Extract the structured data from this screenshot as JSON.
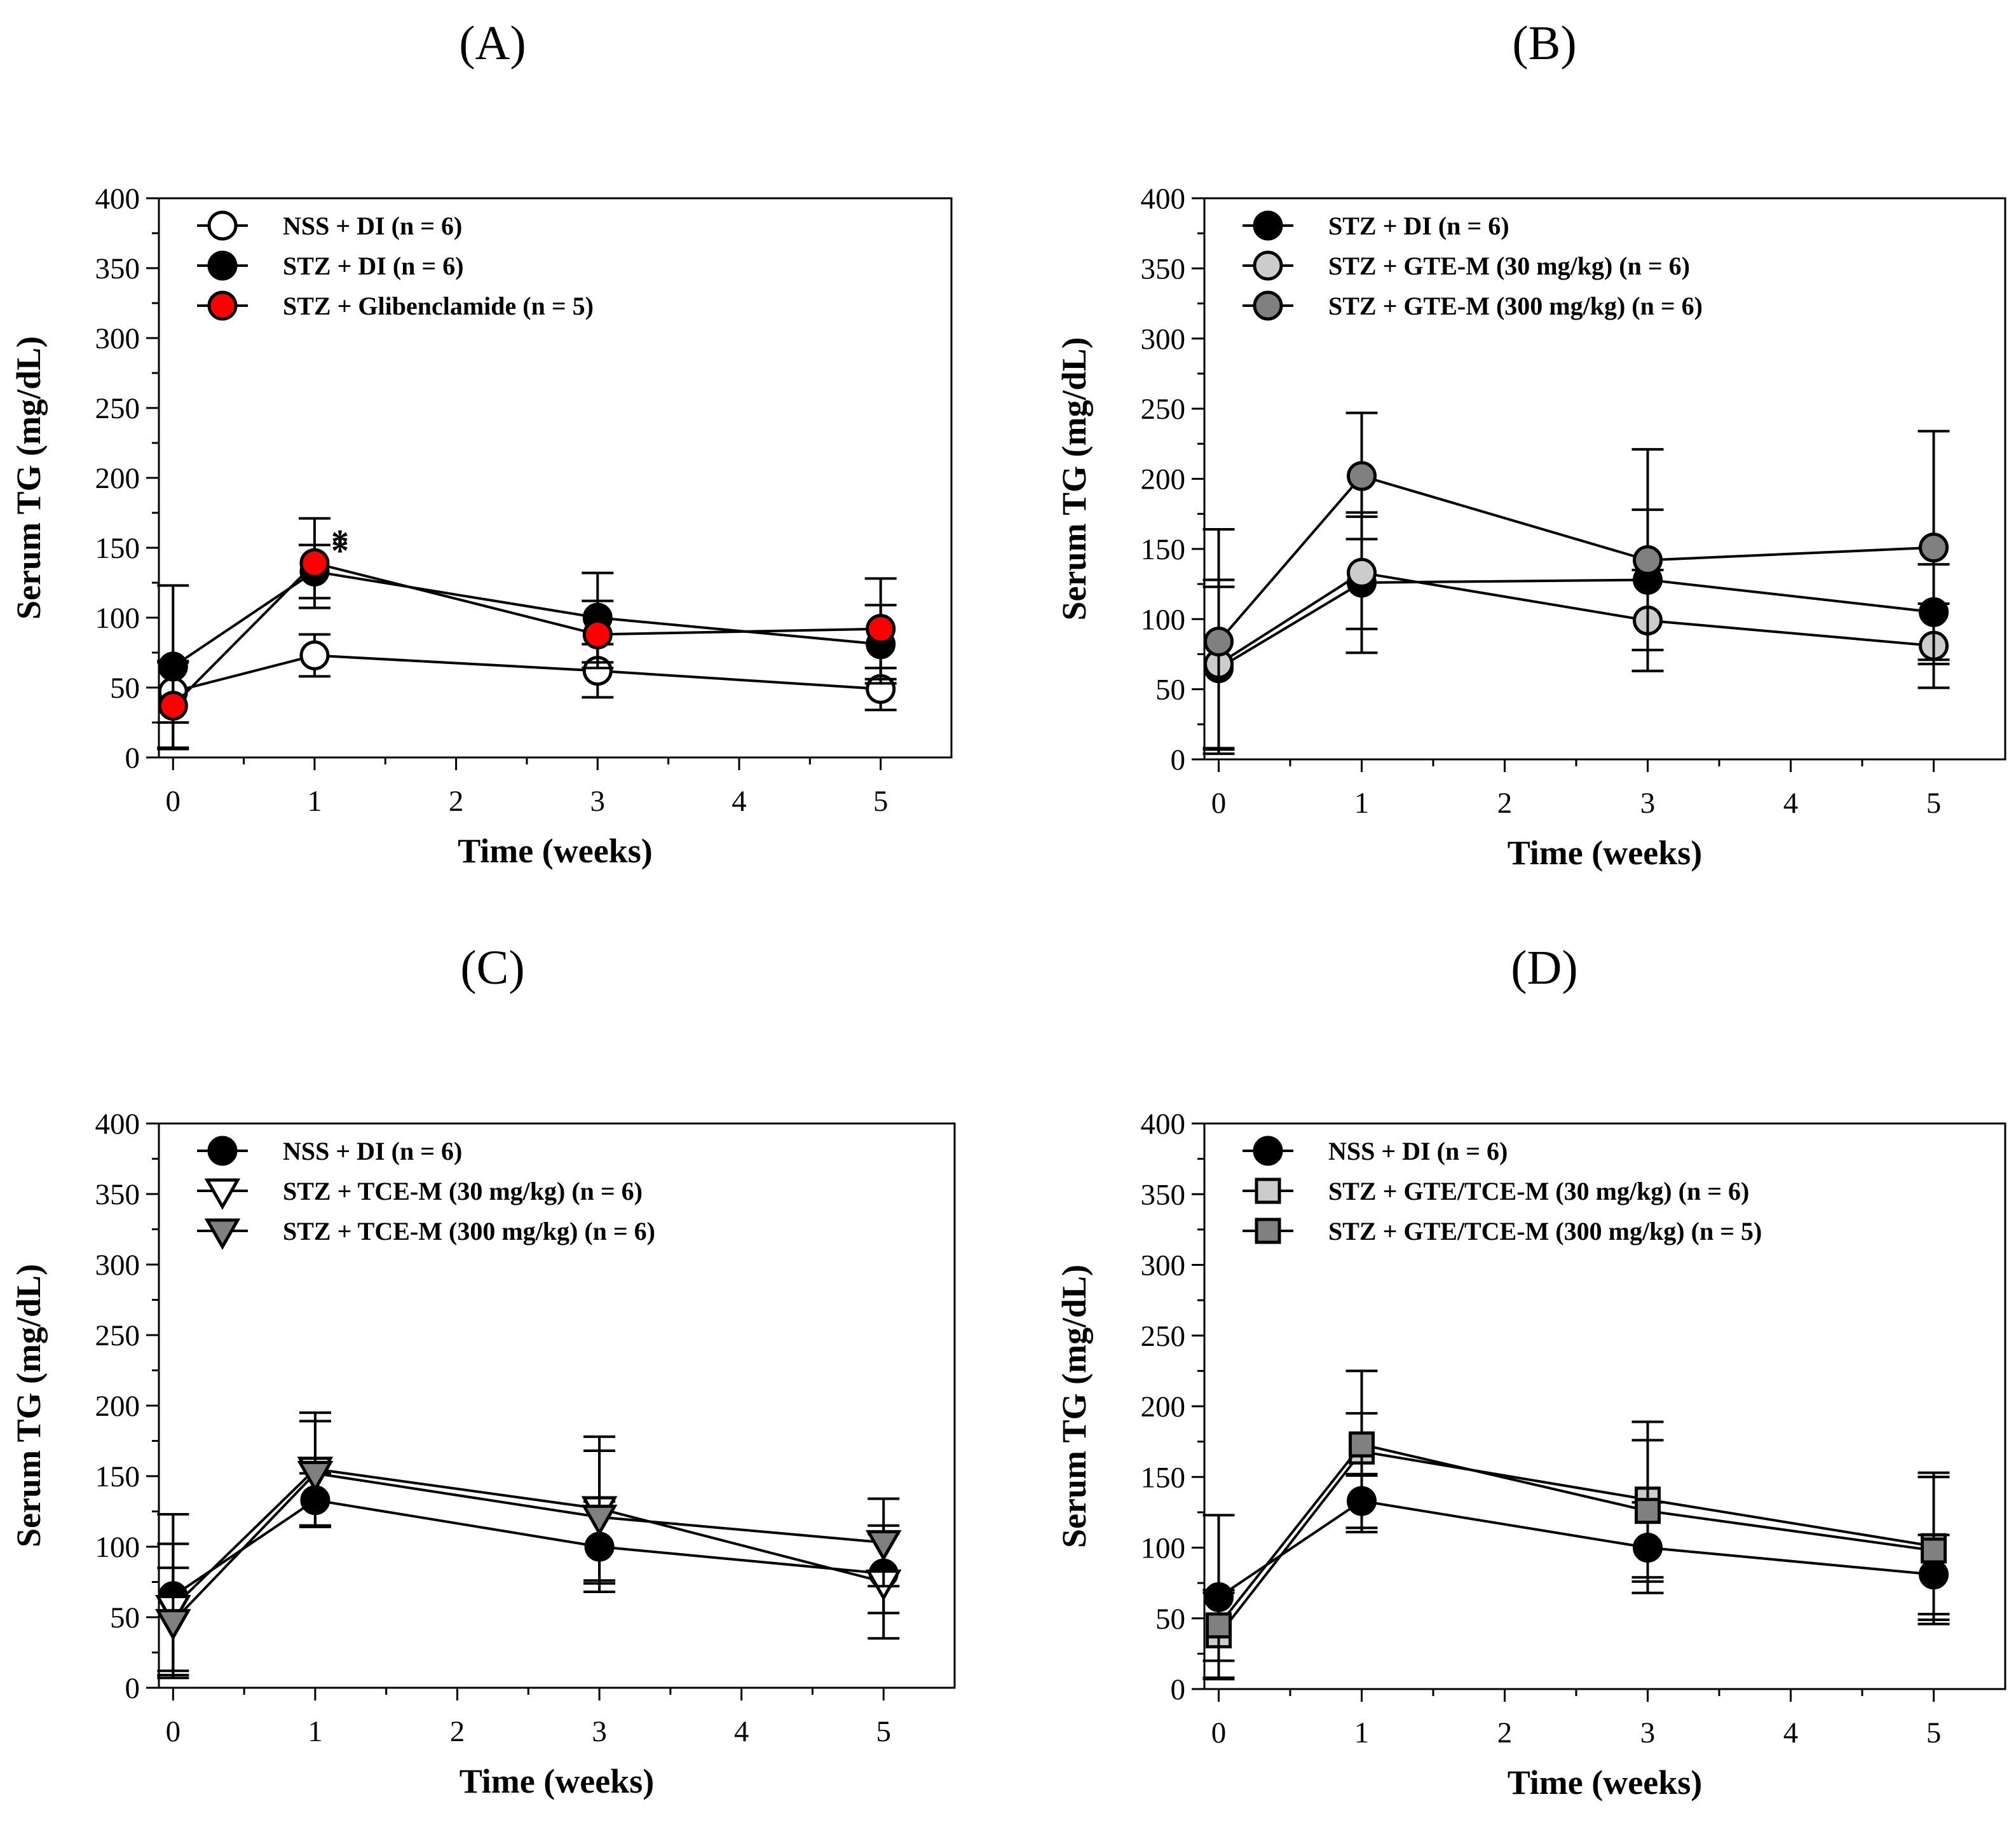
{
  "figure": {
    "charts": [
      {
        "id": "A",
        "panel_label": "(A)",
        "series_order": [
          "nss_di",
          "stz_di",
          "stz_glib"
        ],
        "asterisks": [
          {
            "series": "stz_glib",
            "x": 1,
            "text": "*"
          },
          {
            "series": "stz_di",
            "x": 1,
            "text": "*"
          }
        ]
      },
      {
        "id": "B",
        "panel_label": "(B)",
        "series_order": [
          "stz_di",
          "gte_30",
          "gte_300"
        ],
        "asterisks": []
      },
      {
        "id": "C",
        "panel_label": "(C)",
        "series_order": [
          "nss_di",
          "tce_30",
          "tce_300"
        ],
        "asterisks": []
      },
      {
        "id": "D",
        "panel_label": "(D)",
        "series_order": [
          "nss_di",
          "gtetce_30",
          "gtetce_300"
        ],
        "asterisks": []
      }
    ]
  },
  "chart_data": [
    {
      "type": "line",
      "title": "(A)",
      "xlabel": "Time (weeks)",
      "ylabel": "Serum TG (mg/dL)",
      "xlim": [
        -0.1,
        5.5
      ],
      "ylim": [
        0,
        400
      ],
      "xticks": [
        0,
        1,
        2,
        3,
        4,
        5
      ],
      "yticks": [
        0,
        50,
        100,
        150,
        200,
        250,
        300,
        350,
        400
      ],
      "grid": false,
      "legend_position": "top-left",
      "x": [
        0,
        1,
        3,
        5
      ],
      "series": [
        {
          "key": "nss_di",
          "name": "NSS + DI (n = 6)",
          "marker": "circle",
          "fill": "#ffffff",
          "values": [
            47,
            73,
            62,
            49
          ],
          "errors": [
            22,
            15,
            19,
            15
          ]
        },
        {
          "key": "stz_di",
          "name": "STZ + DI (n = 6)",
          "marker": "circle",
          "fill": "#000000",
          "values": [
            65,
            133,
            100,
            81
          ],
          "errors": [
            58,
            19,
            32,
            28
          ]
        },
        {
          "key": "stz_glib",
          "name": "STZ + Glibenclamide (n = 5)",
          "marker": "circle",
          "fill": "#ff0000",
          "values": [
            37,
            139,
            88,
            92
          ],
          "errors": [
            31,
            32,
            24,
            36
          ]
        }
      ]
    },
    {
      "type": "line",
      "title": "(B)",
      "xlabel": "Time (weeks)",
      "ylabel": "Serum TG (mg/dL)",
      "xlim": [
        -0.1,
        5.5
      ],
      "ylim": [
        0,
        400
      ],
      "xticks": [
        0,
        1,
        2,
        3,
        4,
        5
      ],
      "yticks": [
        0,
        50,
        100,
        150,
        200,
        250,
        300,
        350,
        400
      ],
      "grid": false,
      "legend_position": "top-left",
      "x": [
        0,
        1,
        3,
        5
      ],
      "series": [
        {
          "key": "stz_di",
          "name": "STZ + DI (n = 6)",
          "marker": "circle",
          "fill": "#000000",
          "values": [
            65,
            126,
            128,
            105
          ],
          "errors": [
            58,
            50,
            50,
            34
          ]
        },
        {
          "key": "gte_30",
          "name": "STZ + GTE-M (30 mg/kg) (n = 6)",
          "marker": "circle",
          "fill": "#cccccc",
          "values": [
            68,
            133,
            99,
            81
          ],
          "errors": [
            60,
            40,
            36,
            30
          ]
        },
        {
          "key": "gte_300",
          "name": "STZ + GTE-M (300 mg/kg) (n = 6)",
          "marker": "circle",
          "fill": "#808080",
          "values": [
            84,
            202,
            142,
            151
          ],
          "errors": [
            80,
            45,
            79,
            83
          ]
        }
      ]
    },
    {
      "type": "line",
      "title": "(C)",
      "xlabel": "Time (weeks)",
      "ylabel": "Serum TG (mg/dL)",
      "xlim": [
        -0.1,
        5.5
      ],
      "ylim": [
        0,
        400
      ],
      "xticks": [
        0,
        1,
        2,
        3,
        4,
        5
      ],
      "yticks": [
        0,
        50,
        100,
        150,
        200,
        250,
        300,
        350,
        400
      ],
      "grid": false,
      "legend_position": "top-left",
      "x": [
        0,
        1,
        3,
        5
      ],
      "series": [
        {
          "key": "nss_di",
          "name": "NSS + DI (n = 6)",
          "marker": "circle",
          "fill": "#000000",
          "values": [
            65,
            133,
            100,
            81
          ],
          "errors": [
            58,
            19,
            32,
            28
          ]
        },
        {
          "key": "tce_30",
          "name": "STZ + TCE-M (30 mg/kg) (n = 6)",
          "marker": "triangle-down",
          "fill": "#ffffff",
          "values": [
            57,
            155,
            127,
            75
          ],
          "errors": [
            45,
            40,
            51,
            40
          ]
        },
        {
          "key": "tce_300",
          "name": "STZ + TCE-M (300 mg/kg) (n = 6)",
          "marker": "triangle-down",
          "fill": "#808080",
          "values": [
            47,
            152,
            121,
            103
          ],
          "errors": [
            38,
            37,
            47,
            31
          ]
        }
      ]
    },
    {
      "type": "line",
      "title": "(D)",
      "xlabel": "Time (weeks)",
      "ylabel": "Serum TG (mg/dL)",
      "xlim": [
        -0.1,
        5.5
      ],
      "ylim": [
        0,
        400
      ],
      "xticks": [
        0,
        1,
        2,
        3,
        4,
        5
      ],
      "yticks": [
        0,
        50,
        100,
        150,
        200,
        250,
        300,
        350,
        400
      ],
      "grid": false,
      "legend_position": "top-left",
      "x": [
        0,
        1,
        3,
        5
      ],
      "series": [
        {
          "key": "nss_di",
          "name": "NSS + DI (n = 6)",
          "marker": "circle",
          "fill": "#000000",
          "values": [
            65,
            133,
            100,
            81
          ],
          "errors": [
            58,
            19,
            32,
            28
          ]
        },
        {
          "key": "gtetce_30",
          "name": "STZ + GTE/TCE-M (30 mg/kg) (n = 6)",
          "marker": "square",
          "fill": "#cccccc",
          "values": [
            38,
            168,
            134,
            101
          ],
          "errors": [
            30,
            57,
            55,
            52
          ]
        },
        {
          "key": "gtetce_300",
          "name": "STZ + GTE/TCE-M (300 mg/kg) (n = 5)",
          "marker": "square",
          "fill": "#808080",
          "values": [
            45,
            173,
            126,
            98
          ],
          "errors": [
            25,
            22,
            50,
            52
          ]
        }
      ]
    }
  ]
}
